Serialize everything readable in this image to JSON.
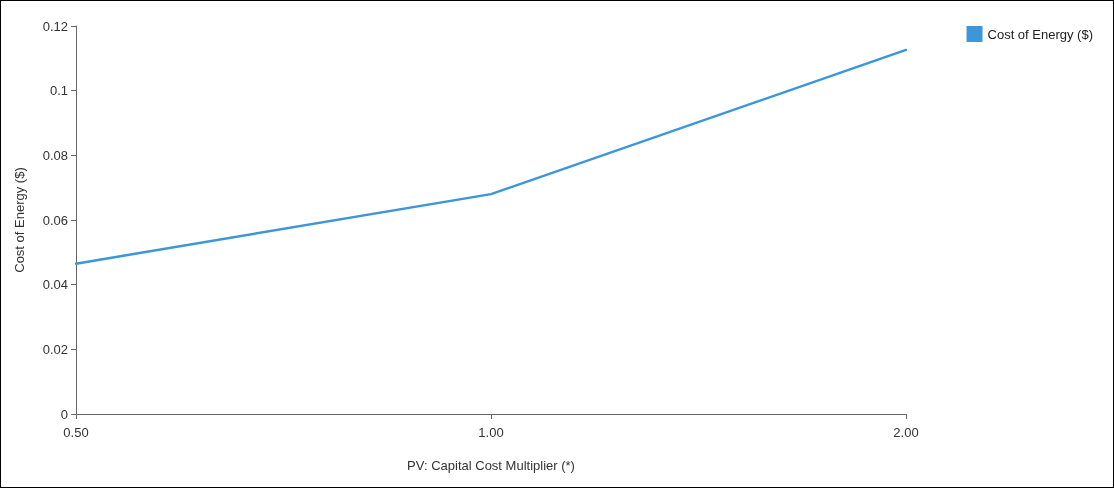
{
  "chart_data": {
    "type": "line",
    "xlabel": "PV: Capital Cost Multiplier (*)",
    "ylabel": "Cost of Energy ($)",
    "categories": [
      "0.50",
      "1.00",
      "2.00"
    ],
    "series": [
      {
        "name": "Cost of Energy ($)",
        "color": "#3c96dc",
        "values": [
          0.0465,
          0.068,
          0.1126
        ]
      }
    ],
    "ylim": [
      0,
      0.12
    ],
    "yticks": [
      0,
      0.02,
      0.04,
      0.06,
      0.08,
      0.1,
      0.12
    ],
    "grid": false,
    "legend": "top right",
    "marker": "none",
    "line_style": "solid"
  }
}
